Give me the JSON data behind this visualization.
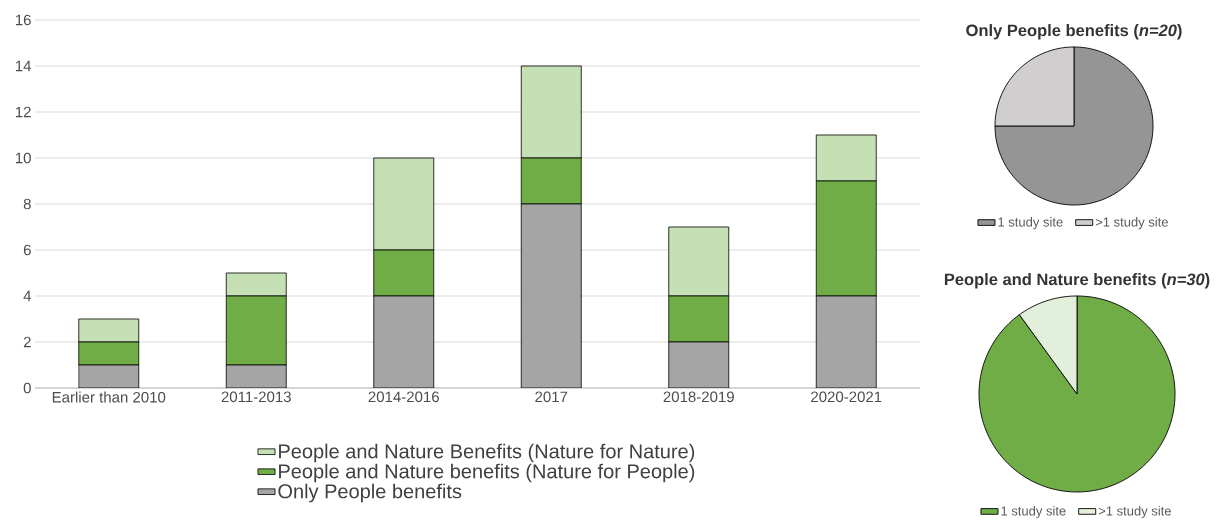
{
  "chart_data": [
    {
      "type": "bar",
      "stacked": true,
      "categories": [
        "Earlier than 2010",
        "2011-2013",
        "2014-2016",
        "2017",
        "2018-2019",
        "2020-2021"
      ],
      "series": [
        {
          "name": "Only People benefits",
          "color": "#a5a5a5",
          "values": [
            1,
            1,
            4,
            8,
            2,
            4
          ]
        },
        {
          "name": "People and Nature benefits (Nature for People)",
          "color": "#70ad47",
          "values": [
            1,
            3,
            2,
            2,
            2,
            5
          ]
        },
        {
          "name": "People and Nature Benefits (Nature for Nature)",
          "color": "#c5e0b4",
          "values": [
            1,
            1,
            4,
            4,
            3,
            2
          ]
        }
      ],
      "ylim": [
        0,
        16
      ],
      "yticks": [
        0,
        2,
        4,
        6,
        8,
        10,
        12,
        14,
        16
      ],
      "grid": "y",
      "legend": "bottom"
    },
    {
      "type": "pie",
      "title": "Only People benefits (*n=20*)",
      "categories": [
        "1 study site",
        ">1 study site"
      ],
      "values": [
        75,
        25
      ],
      "colors": [
        "#959595",
        "#d0cece"
      ],
      "legend": "bottom"
    },
    {
      "type": "pie",
      "title": "People and Nature benefits (*n=30*)",
      "categories": [
        "1 study site",
        ">1 study site"
      ],
      "values": [
        90,
        10
      ],
      "colors": [
        "#70ad47",
        "#e2efda"
      ],
      "legend": "bottom"
    }
  ]
}
